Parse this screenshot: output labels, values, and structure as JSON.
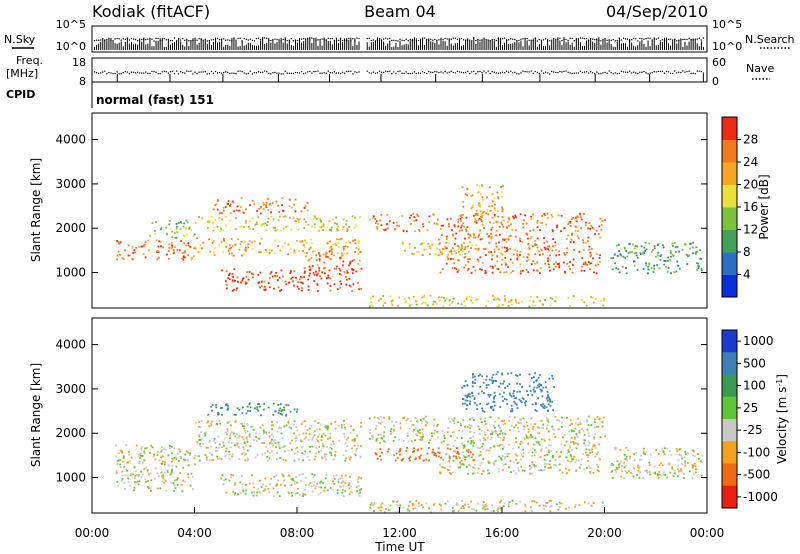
{
  "header": {
    "station": "Kodiak (fitACF)",
    "beam": "Beam 04",
    "date": "04/Sep/2010"
  },
  "status_panels": {
    "nsky_label": "N.Sky",
    "nsearch_label": "N.Search",
    "freq_label_1": "Freq.",
    "freq_label_2": "[MHz]",
    "nave_label": "Nave",
    "cpid_label": "CPID",
    "cpid_text": "normal (fast) 151",
    "noise_ticks_left": [
      "10^5",
      "10^0"
    ],
    "noise_ticks_right": [
      "10^5",
      "10^0"
    ],
    "freq_ticks": [
      "18",
      "8"
    ],
    "nave_ticks": [
      "60",
      "0"
    ]
  },
  "chart_data": [
    {
      "type": "heatmap",
      "name": "power",
      "xlabel": "",
      "ylabel": "Slant Range [km]",
      "ylim": [
        200,
        4600
      ],
      "yticks": [
        "1000",
        "2000",
        "3000",
        "4000"
      ],
      "colorbar_label": "Power [dB]",
      "colorbar_ticks": [
        "4",
        "8",
        "12",
        "16",
        "20",
        "24",
        "28"
      ],
      "colorbar_colors": [
        "#0a2dd8",
        "#2f6fc0",
        "#41a05a",
        "#7cc241",
        "#e8e040",
        "#f5a623",
        "#f07a20",
        "#e82d12"
      ],
      "regions": [
        {
          "t": [
            0.9,
            4.0
          ],
          "r": [
            1300,
            1750
          ],
          "level": 24
        },
        {
          "t": [
            2.2,
            4.0
          ],
          "r": [
            1800,
            2200
          ],
          "level": 12
        },
        {
          "t": [
            4.0,
            10.5
          ],
          "r": [
            1400,
            1800
          ],
          "level": 20
        },
        {
          "t": [
            4.0,
            10.5
          ],
          "r": [
            1950,
            2300
          ],
          "level": 16
        },
        {
          "t": [
            4.7,
            8.4
          ],
          "r": [
            2350,
            2700
          ],
          "level": 22
        },
        {
          "t": [
            5.0,
            10.5
          ],
          "r": [
            600,
            1100
          ],
          "level": 28
        },
        {
          "t": [
            8.2,
            10.5
          ],
          "r": [
            1100,
            1500
          ],
          "level": 22
        },
        {
          "t": [
            10.8,
            20.0
          ],
          "r": [
            1950,
            2350
          ],
          "level": 22
        },
        {
          "t": [
            13.5,
            19.8
          ],
          "r": [
            1000,
            1900
          ],
          "level": 24
        },
        {
          "t": [
            14.4,
            16.0
          ],
          "r": [
            2300,
            3000
          ],
          "level": 18
        },
        {
          "t": [
            10.8,
            20.0
          ],
          "r": [
            250,
            500
          ],
          "level": 14
        },
        {
          "t": [
            12.0,
            15.0
          ],
          "r": [
            1400,
            1700
          ],
          "level": 14
        },
        {
          "t": [
            20.2,
            23.8
          ],
          "r": [
            1000,
            1700
          ],
          "level": 6
        }
      ]
    },
    {
      "type": "heatmap",
      "name": "velocity",
      "xlabel": "Time UT",
      "ylabel": "Slant Range [km]",
      "ylim": [
        200,
        4600
      ],
      "xlim": [
        0,
        24
      ],
      "xticks": [
        "00:00",
        "04:00",
        "08:00",
        "12:00",
        "16:00",
        "20:00",
        "00:00"
      ],
      "yticks": [
        "1000",
        "2000",
        "3000",
        "4000"
      ],
      "colorbar_label": "Velocity [m s",
      "colorbar_label_sup": "-1",
      "colorbar_ticks": [
        "1000",
        "500",
        "100",
        "25",
        "-25",
        "-100",
        "-500",
        "-1000"
      ],
      "colorbar_colors": [
        "#1a3acc",
        "#3e7fb6",
        "#3a9a52",
        "#5fc43a",
        "#c8c8c8",
        "#f2a222",
        "#ee6a16",
        "#e81f14"
      ],
      "regions": [
        {
          "t": [
            0.9,
            4.0
          ],
          "r": [
            700,
            1750
          ],
          "v": 0
        },
        {
          "t": [
            4.0,
            10.5
          ],
          "r": [
            1400,
            2300
          ],
          "v": 0
        },
        {
          "t": [
            5.0,
            10.5
          ],
          "r": [
            600,
            1100
          ],
          "v": 0
        },
        {
          "t": [
            4.5,
            8.0
          ],
          "r": [
            2400,
            2700
          ],
          "v": 300
        },
        {
          "t": [
            10.8,
            20.0
          ],
          "r": [
            1800,
            2400
          ],
          "v": 0
        },
        {
          "t": [
            13.5,
            19.8
          ],
          "r": [
            1100,
            1800
          ],
          "v": 0
        },
        {
          "t": [
            11.0,
            15.0
          ],
          "r": [
            1400,
            1700
          ],
          "v": -150
        },
        {
          "t": [
            14.4,
            18.0
          ],
          "r": [
            2500,
            3400
          ],
          "v": 400
        },
        {
          "t": [
            10.8,
            20.0
          ],
          "r": [
            250,
            500
          ],
          "v": 0
        },
        {
          "t": [
            20.2,
            23.8
          ],
          "r": [
            1000,
            1700
          ],
          "v": 0
        }
      ]
    }
  ]
}
